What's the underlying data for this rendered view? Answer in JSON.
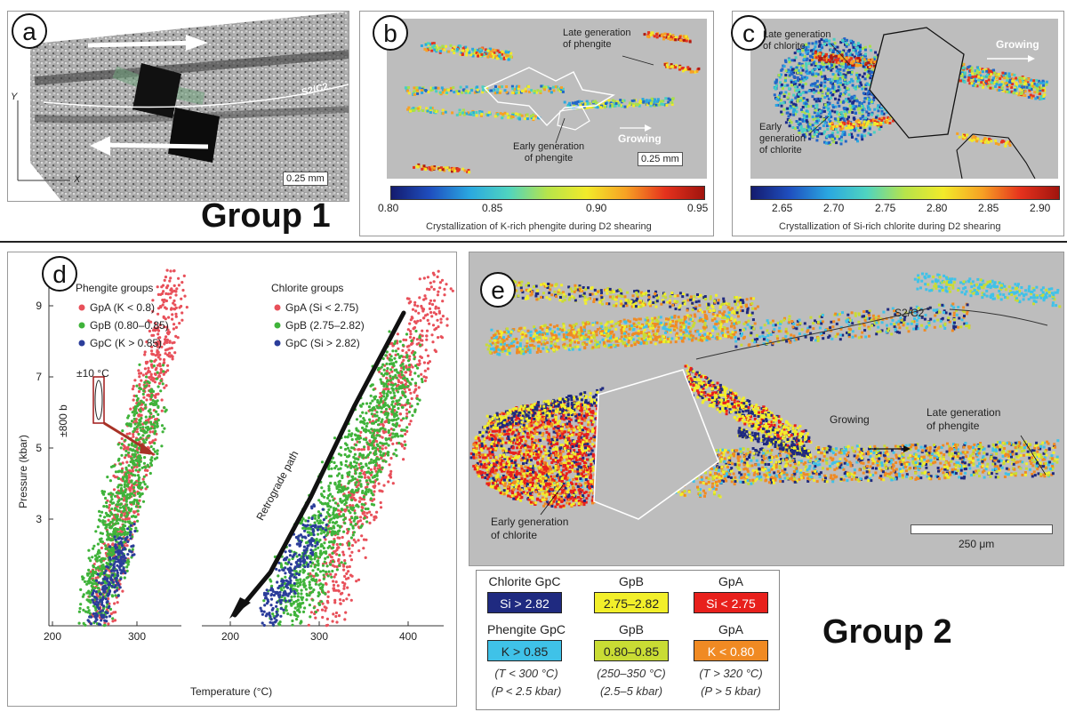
{
  "panel_a": {
    "tag": "a",
    "foliation_label": "S2/C2",
    "axis_y": "Y",
    "axis_x": "X",
    "scale_bar": "0.25 mm"
  },
  "group1_label": "Group 1",
  "group2_label": "Group 2",
  "panel_b": {
    "tag": "b",
    "label_late": "Late generation\nof phengite",
    "label_early": "Early generation\nof phengite",
    "label_growing": "Growing",
    "scale_bar": "0.25 mm",
    "colorbar_ticks": [
      "0.80",
      "0.85",
      "0.90",
      "0.95"
    ],
    "colorbar_caption": "Crystallization of K-rich phengite during D2 shearing"
  },
  "panel_c": {
    "tag": "c",
    "label_late": "Late generation\nof chlorite",
    "label_early": "Early\ngeneration\nof chlorite",
    "label_growing": "Growing",
    "colorbar_ticks": [
      "2.65",
      "2.70",
      "2.75",
      "2.80",
      "2.85",
      "2.90"
    ],
    "colorbar_caption": "Crystallization of Si-rich chlorite during D2 shearing"
  },
  "panel_d": {
    "tag": "d",
    "ylabel": "Pressure (kbar)",
    "xlabel": "Temperature (°C)",
    "phengite_title": "Phengite groups",
    "phengite_items": [
      "GpA (K < 0.8)",
      "GpB (0.80–0.85)",
      "GpC (K > 0.85)"
    ],
    "chlorite_title": "Chlorite groups",
    "chlorite_items": [
      "GpA (Si < 2.75)",
      "GpB (2.75–2.82)",
      "GpC (Si > 2.82)"
    ],
    "error_t": "±10 °C",
    "error_p": "±800 b",
    "retro_label": "Retrograde path"
  },
  "panel_e": {
    "tag": "e",
    "foliation_label": "S2/C2",
    "label_growing": "Growing",
    "label_late": "Late generation\nof phengite",
    "label_early": "Early generation\nof chlorite",
    "scale_bar": "250 μm"
  },
  "legend_e": {
    "chl_h": [
      "Chlorite GpC",
      "GpB",
      "GpA"
    ],
    "chl_v": [
      "Si > 2.82",
      "2.75–2.82",
      "Si < 2.75"
    ],
    "phe_h": [
      "Phengite GpC",
      "GpB",
      "GpA"
    ],
    "phe_v": [
      "K > 0.85",
      "0.80–0.85",
      "K < 0.80"
    ],
    "t_notes": [
      "(T < 300 °C)",
      "(250–350 °C)",
      "(T > 320 °C)"
    ],
    "p_notes": [
      "(P < 2.5 kbar)",
      "(2.5–5 kbar)",
      "(P > 5 kbar)"
    ],
    "colors": {
      "chl_c": "#1f2a80",
      "chl_b": "#f2ef2a",
      "chl_a": "#e8201c",
      "phe_c": "#3fc2e8",
      "phe_b": "#c9dc34",
      "phe_a": "#f08a23"
    }
  },
  "chart_data": {
    "type": "scatter",
    "xlabel": "Temperature (°C)",
    "ylabel": "Pressure (kbar)",
    "left_x_ticks": [
      200,
      300
    ],
    "right_x_ticks": [
      200,
      300,
      400
    ],
    "y_ticks": [
      3,
      5,
      7,
      9
    ],
    "left_xlim": [
      200,
      345
    ],
    "right_xlim": [
      165,
      440
    ],
    "ylim": [
      0,
      10
    ],
    "series_colors": {
      "GpA": "#e8505a",
      "GpB": "#3fb33a",
      "GpC": "#2b3d9a"
    },
    "phengite": {
      "GpA": {
        "t_range": [
          255,
          345
        ],
        "p_range": [
          0.3,
          9.8
        ]
      },
      "GpB": {
        "t_range": [
          245,
          320
        ],
        "p_range": [
          0.2,
          6.5
        ]
      },
      "GpC": {
        "t_range": [
          250,
          290
        ],
        "p_range": [
          0.2,
          2.5
        ]
      }
    },
    "chlorite": {
      "GpA": {
        "t_range": [
          300,
          435
        ],
        "p_range": [
          0.3,
          9.8
        ]
      },
      "GpB": {
        "t_range": [
          255,
          400
        ],
        "p_range": [
          0.2,
          7.2
        ]
      },
      "GpC": {
        "t_range": [
          240,
          300
        ],
        "p_range": [
          0.2,
          3.0
        ]
      }
    },
    "retrograde_path": [
      [
        395,
        8.8
      ],
      [
        340,
        6.2
      ],
      [
        290,
        3.6
      ],
      [
        245,
        1.5
      ],
      [
        205,
        0.3
      ]
    ]
  }
}
